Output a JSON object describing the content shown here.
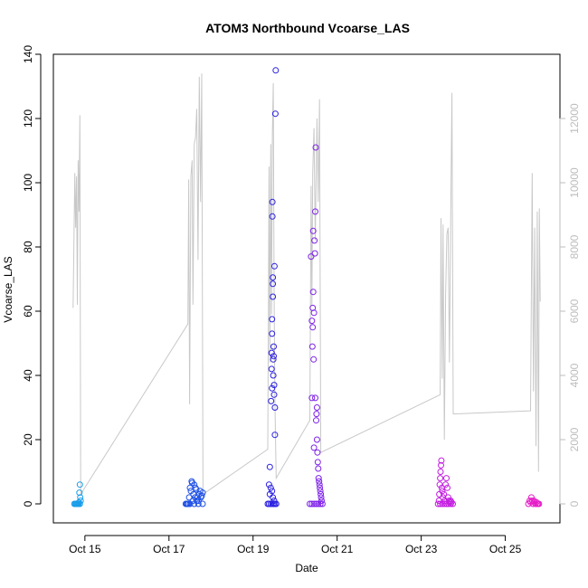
{
  "chart_data": {
    "type": "scatter",
    "title": "ATOM3 Northbound Vcoarse_LAS",
    "xlabel": "Date",
    "ylabel": "Vcoarse_LAS",
    "x_unit": "days in October",
    "xlim": [
      14.25,
      26.3
    ],
    "ylim": [
      0,
      140
    ],
    "y_ticks": [
      0,
      20,
      40,
      60,
      80,
      100,
      120,
      140
    ],
    "x_ticks": [
      {
        "value": 15,
        "label": "Oct 15"
      },
      {
        "value": 17,
        "label": "Oct 17"
      },
      {
        "value": 19,
        "label": "Oct 19"
      },
      {
        "value": 21,
        "label": "Oct 21"
      },
      {
        "value": 23,
        "label": "Oct 23"
      },
      {
        "value": 25,
        "label": "Oct 25"
      }
    ],
    "secondary_axis": {
      "ylim": [
        0,
        14000
      ],
      "ticks": [
        0,
        2000,
        4000,
        6000,
        8000,
        10000,
        12000
      ],
      "color": "#bdbdbd"
    },
    "grid": false,
    "background_series": {
      "color": "#c8c8c8",
      "points": [
        [
          14.72,
          6100
        ],
        [
          14.76,
          10300
        ],
        [
          14.78,
          8600
        ],
        [
          14.8,
          10200
        ],
        [
          14.82,
          6200
        ],
        [
          14.84,
          10700
        ],
        [
          14.86,
          9100
        ],
        [
          14.88,
          12100
        ],
        [
          14.9,
          300
        ],
        [
          17.45,
          5600
        ],
        [
          17.47,
          10100
        ],
        [
          17.49,
          3100
        ],
        [
          17.52,
          10200
        ],
        [
          17.55,
          10700
        ],
        [
          17.57,
          6200
        ],
        [
          17.6,
          11200
        ],
        [
          17.63,
          11400
        ],
        [
          17.66,
          12300
        ],
        [
          17.69,
          7600
        ],
        [
          17.72,
          13300
        ],
        [
          17.75,
          9400
        ],
        [
          17.78,
          13400
        ],
        [
          17.81,
          300
        ],
        [
          19.35,
          1700
        ],
        [
          19.38,
          10500
        ],
        [
          19.4,
          4400
        ],
        [
          19.42,
          11200
        ],
        [
          19.44,
          5900
        ],
        [
          19.46,
          11500
        ],
        [
          19.48,
          13100
        ],
        [
          19.5,
          6600
        ],
        [
          19.52,
          3200
        ],
        [
          19.55,
          800
        ],
        [
          20.35,
          2600
        ],
        [
          20.38,
          9900
        ],
        [
          20.4,
          6200
        ],
        [
          20.42,
          10300
        ],
        [
          20.45,
          11700
        ],
        [
          20.48,
          8200
        ],
        [
          20.52,
          12000
        ],
        [
          20.55,
          9400
        ],
        [
          20.58,
          12600
        ],
        [
          20.61,
          1600
        ],
        [
          23.45,
          3400
        ],
        [
          23.47,
          8900
        ],
        [
          23.5,
          3900
        ],
        [
          23.52,
          8700
        ],
        [
          23.55,
          2000
        ],
        [
          23.58,
          6500
        ],
        [
          23.61,
          8400
        ],
        [
          23.64,
          8600
        ],
        [
          23.67,
          4400
        ],
        [
          23.7,
          8800
        ],
        [
          23.73,
          12800
        ],
        [
          23.76,
          2800
        ],
        [
          25.6,
          2900
        ],
        [
          25.64,
          10300
        ],
        [
          25.67,
          3500
        ],
        [
          25.7,
          8600
        ],
        [
          25.73,
          1800
        ],
        [
          25.76,
          9100
        ],
        [
          25.79,
          1000
        ],
        [
          25.81,
          9200
        ],
        [
          25.83,
          6300
        ]
      ]
    },
    "series": [
      {
        "color": "#1a9dea",
        "points": [
          [
            14.75,
            0
          ],
          [
            14.77,
            0
          ],
          [
            14.79,
            0
          ],
          [
            14.8,
            0
          ],
          [
            14.82,
            0
          ],
          [
            14.83,
            0
          ],
          [
            14.85,
            0
          ],
          [
            14.86,
            0.5
          ],
          [
            14.87,
            3.5
          ],
          [
            14.88,
            6
          ],
          [
            14.88,
            0
          ],
          [
            14.89,
            2
          ],
          [
            14.9,
            1
          ]
        ]
      },
      {
        "color": "#1e50e6",
        "points": [
          [
            17.4,
            0
          ],
          [
            17.42,
            0
          ],
          [
            17.44,
            0
          ],
          [
            17.46,
            0
          ],
          [
            17.48,
            2
          ],
          [
            17.5,
            5
          ],
          [
            17.52,
            4
          ],
          [
            17.54,
            7
          ],
          [
            17.55,
            6.5
          ],
          [
            17.57,
            1
          ],
          [
            17.58,
            3
          ],
          [
            17.6,
            6
          ],
          [
            17.62,
            2
          ],
          [
            17.63,
            5
          ],
          [
            17.65,
            4.5
          ],
          [
            17.66,
            1
          ],
          [
            17.68,
            2
          ],
          [
            17.7,
            1
          ],
          [
            17.72,
            3
          ],
          [
            17.74,
            4
          ],
          [
            17.76,
            2
          ],
          [
            17.78,
            2.5
          ],
          [
            17.8,
            3.5
          ],
          [
            17.5,
            0
          ],
          [
            17.6,
            0
          ],
          [
            17.7,
            0
          ],
          [
            17.8,
            0
          ]
        ]
      },
      {
        "color": "#2a20e0",
        "points": [
          [
            19.35,
            0
          ],
          [
            19.38,
            6
          ],
          [
            19.4,
            3
          ],
          [
            19.4,
            11.5
          ],
          [
            19.42,
            5
          ],
          [
            19.43,
            32
          ],
          [
            19.44,
            42
          ],
          [
            19.44,
            47
          ],
          [
            19.45,
            53
          ],
          [
            19.45,
            57.5
          ],
          [
            19.45,
            36
          ],
          [
            19.46,
            89.5
          ],
          [
            19.46,
            94
          ],
          [
            19.47,
            64.5
          ],
          [
            19.47,
            68.5
          ],
          [
            19.47,
            70.5
          ],
          [
            19.48,
            45
          ],
          [
            19.48,
            40
          ],
          [
            19.49,
            49
          ],
          [
            19.49,
            46
          ],
          [
            19.5,
            37
          ],
          [
            19.5,
            34
          ],
          [
            19.51,
            74
          ],
          [
            19.52,
            30
          ],
          [
            19.52,
            21.5
          ],
          [
            19.53,
            121.5
          ],
          [
            19.54,
            135
          ],
          [
            19.45,
            4
          ],
          [
            19.47,
            2
          ],
          [
            19.5,
            1
          ],
          [
            19.52,
            0
          ],
          [
            19.55,
            0
          ],
          [
            19.38,
            0
          ],
          [
            19.42,
            0
          ],
          [
            19.46,
            0
          ],
          [
            19.49,
            0
          ]
        ]
      },
      {
        "color": "#7e22e8",
        "points": [
          [
            20.35,
            0
          ],
          [
            20.38,
            77
          ],
          [
            20.4,
            33
          ],
          [
            20.4,
            57
          ],
          [
            20.41,
            49
          ],
          [
            20.42,
            61
          ],
          [
            20.42,
            55
          ],
          [
            20.43,
            85
          ],
          [
            20.43,
            66
          ],
          [
            20.44,
            45
          ],
          [
            20.45,
            59.5
          ],
          [
            20.45,
            17.5
          ],
          [
            20.46,
            82
          ],
          [
            20.47,
            78
          ],
          [
            20.48,
            33
          ],
          [
            20.48,
            91
          ],
          [
            20.49,
            111
          ],
          [
            20.5,
            26
          ],
          [
            20.51,
            28
          ],
          [
            20.52,
            30
          ],
          [
            20.52,
            20
          ],
          [
            20.53,
            16
          ],
          [
            20.54,
            13
          ],
          [
            20.55,
            11
          ],
          [
            20.56,
            8
          ],
          [
            20.57,
            7
          ],
          [
            20.58,
            6
          ],
          [
            20.59,
            5
          ],
          [
            20.6,
            4
          ],
          [
            20.61,
            3
          ],
          [
            20.62,
            2
          ],
          [
            20.63,
            1
          ],
          [
            20.4,
            0
          ],
          [
            20.45,
            0
          ],
          [
            20.5,
            0
          ],
          [
            20.55,
            0
          ],
          [
            20.6,
            0
          ],
          [
            20.65,
            0
          ]
        ]
      },
      {
        "color": "#c31ee0",
        "points": [
          [
            23.4,
            0
          ],
          [
            23.42,
            1
          ],
          [
            23.43,
            3
          ],
          [
            23.44,
            6
          ],
          [
            23.45,
            8
          ],
          [
            23.46,
            10
          ],
          [
            23.47,
            12
          ],
          [
            23.48,
            13.5
          ],
          [
            23.49,
            5
          ],
          [
            23.5,
            4
          ],
          [
            23.52,
            2
          ],
          [
            23.54,
            3
          ],
          [
            23.56,
            1
          ],
          [
            23.58,
            6
          ],
          [
            23.6,
            8
          ],
          [
            23.62,
            5
          ],
          [
            23.64,
            2
          ],
          [
            23.66,
            1
          ],
          [
            23.68,
            0.5
          ],
          [
            23.7,
            1
          ],
          [
            23.72,
            0.5
          ],
          [
            23.45,
            0
          ],
          [
            23.5,
            0
          ],
          [
            23.55,
            0
          ],
          [
            23.6,
            0
          ],
          [
            23.65,
            0
          ],
          [
            23.7,
            0
          ],
          [
            23.75,
            0
          ]
        ]
      },
      {
        "color": "#e61ec8",
        "points": [
          [
            25.55,
            0
          ],
          [
            25.58,
            1
          ],
          [
            25.6,
            0.5
          ],
          [
            25.62,
            2
          ],
          [
            25.64,
            1
          ],
          [
            25.66,
            0
          ],
          [
            25.68,
            1
          ],
          [
            25.7,
            0.5
          ],
          [
            25.72,
            0
          ],
          [
            25.74,
            0.5
          ],
          [
            25.76,
            0
          ],
          [
            25.78,
            0
          ],
          [
            25.8,
            0
          ]
        ]
      }
    ]
  }
}
